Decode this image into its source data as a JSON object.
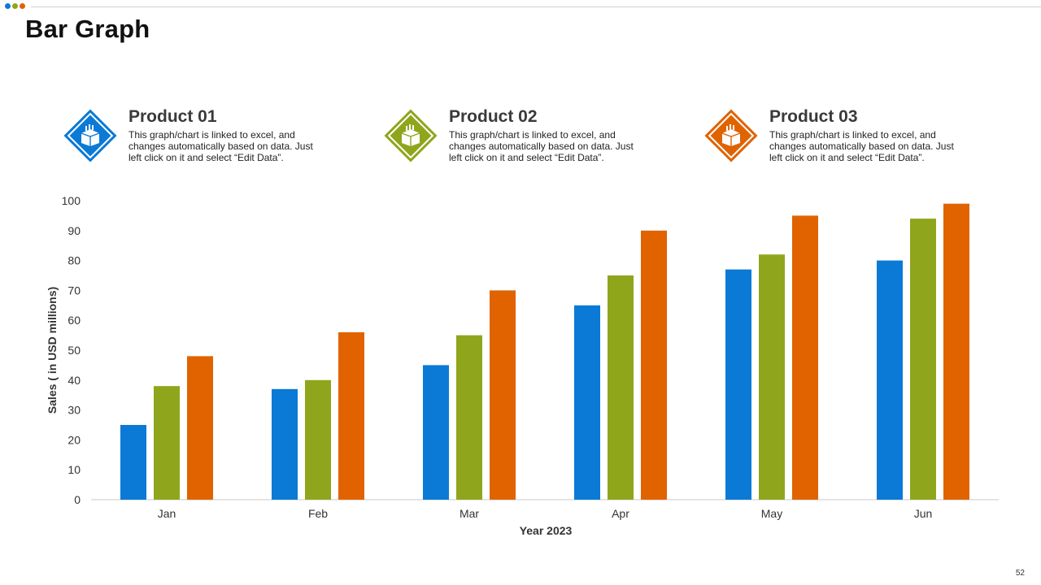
{
  "slide": {
    "title": "Bar Graph",
    "page_number": "52",
    "dot_colors": [
      "#0a7ad6",
      "#8fa61c",
      "#e06300"
    ]
  },
  "products": [
    {
      "title": "Product 01",
      "description": "This graph/chart is linked to excel, and changes automatically based on data. Just left click on it and select “Edit Data”.",
      "color": "#0a7ad6",
      "icon": "package-box-icon"
    },
    {
      "title": "Product 02",
      "description": "This graph/chart is linked to excel, and changes automatically based on data. Just left click on it and select “Edit Data”.",
      "color": "#8fa61c",
      "icon": "package-box-icon"
    },
    {
      "title": "Product 03",
      "description": "This graph/chart is linked to excel, and changes automatically based on data. Just left click on it and select “Edit Data”.",
      "color": "#e06300",
      "icon": "package-box-icon"
    }
  ],
  "chart_data": {
    "type": "bar",
    "title": "",
    "xlabel": "Year 2023",
    "ylabel": "Sales ( in USD millions)",
    "ylim": [
      0,
      100
    ],
    "yticks": [
      0,
      10,
      20,
      30,
      40,
      50,
      60,
      70,
      80,
      90,
      100
    ],
    "categories": [
      "Jan",
      "Feb",
      "Mar",
      "Apr",
      "May",
      "Jun"
    ],
    "grid": false,
    "legend": "none",
    "series": [
      {
        "color": "#0a7ad6",
        "values": [
          25,
          37,
          45,
          65,
          77,
          80
        ]
      },
      {
        "color": "#8fa61c",
        "values": [
          38,
          40,
          55,
          75,
          82,
          94
        ]
      },
      {
        "color": "#e06300",
        "values": [
          48,
          56,
          70,
          90,
          95,
          99
        ]
      }
    ]
  }
}
